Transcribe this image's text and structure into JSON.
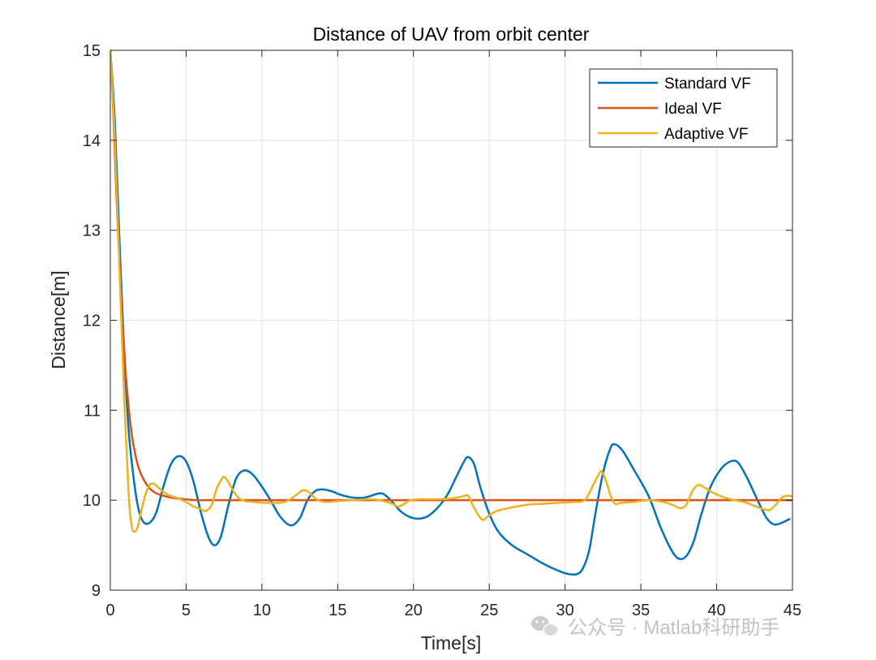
{
  "chart_data": {
    "type": "line",
    "title": "Distance of UAV from orbit center",
    "xlabel": "Time[s]",
    "ylabel": "Distance[m]",
    "xlim": [
      0,
      45
    ],
    "ylim": [
      9,
      15
    ],
    "xticks": [
      0,
      5,
      10,
      15,
      20,
      25,
      30,
      35,
      40,
      45
    ],
    "yticks": [
      9,
      10,
      11,
      12,
      13,
      14,
      15
    ],
    "grid": true,
    "legend_position": "top-right",
    "series": [
      {
        "name": "Standard VF",
        "color": "#0072BD",
        "points": [
          [
            0,
            15
          ],
          [
            0.3,
            14.2
          ],
          [
            0.6,
            12.9
          ],
          [
            0.9,
            11.7
          ],
          [
            1.2,
            10.8
          ],
          [
            1.5,
            10.3
          ],
          [
            1.8,
            9.95
          ],
          [
            2.1,
            9.78
          ],
          [
            2.5,
            9.74
          ],
          [
            3.0,
            9.85
          ],
          [
            3.5,
            10.15
          ],
          [
            4.0,
            10.4
          ],
          [
            4.5,
            10.49
          ],
          [
            5.0,
            10.43
          ],
          [
            5.5,
            10.2
          ],
          [
            6.0,
            9.85
          ],
          [
            6.5,
            9.58
          ],
          [
            6.9,
            9.5
          ],
          [
            7.3,
            9.6
          ],
          [
            7.8,
            9.95
          ],
          [
            8.3,
            10.24
          ],
          [
            8.8,
            10.33
          ],
          [
            9.3,
            10.3
          ],
          [
            9.8,
            10.2
          ],
          [
            10.5,
            10.02
          ],
          [
            11.2,
            9.82
          ],
          [
            11.9,
            9.72
          ],
          [
            12.5,
            9.8
          ],
          [
            13.0,
            10.0
          ],
          [
            13.5,
            10.1
          ],
          [
            14.0,
            10.12
          ],
          [
            14.6,
            10.1
          ],
          [
            15.2,
            10.06
          ],
          [
            16,
            10.03
          ],
          [
            16.8,
            10.03
          ],
          [
            17.6,
            10.07
          ],
          [
            18.0,
            10.07
          ],
          [
            18.5,
            10.0
          ],
          [
            19.2,
            9.87
          ],
          [
            20.0,
            9.8
          ],
          [
            20.8,
            9.81
          ],
          [
            21.5,
            9.9
          ],
          [
            22.2,
            10.05
          ],
          [
            22.8,
            10.25
          ],
          [
            23.3,
            10.42
          ],
          [
            23.6,
            10.48
          ],
          [
            24.0,
            10.4
          ],
          [
            24.4,
            10.15
          ],
          [
            25.0,
            9.85
          ],
          [
            25.6,
            9.65
          ],
          [
            26.5,
            9.5
          ],
          [
            27.5,
            9.4
          ],
          [
            28.5,
            9.3
          ],
          [
            29.5,
            9.22
          ],
          [
            30.2,
            9.18
          ],
          [
            30.8,
            9.18
          ],
          [
            31.2,
            9.25
          ],
          [
            31.6,
            9.45
          ],
          [
            32.0,
            9.85
          ],
          [
            32.5,
            10.3
          ],
          [
            33.0,
            10.58
          ],
          [
            33.3,
            10.62
          ],
          [
            33.8,
            10.55
          ],
          [
            34.5,
            10.35
          ],
          [
            35.5,
            10.05
          ],
          [
            36.3,
            9.7
          ],
          [
            37.0,
            9.45
          ],
          [
            37.5,
            9.35
          ],
          [
            38.0,
            9.38
          ],
          [
            38.5,
            9.55
          ],
          [
            39.0,
            9.85
          ],
          [
            39.6,
            10.15
          ],
          [
            40.3,
            10.35
          ],
          [
            40.9,
            10.43
          ],
          [
            41.4,
            10.42
          ],
          [
            42.0,
            10.25
          ],
          [
            42.7,
            10.0
          ],
          [
            43.3,
            9.8
          ],
          [
            43.8,
            9.73
          ],
          [
            44.3,
            9.75
          ],
          [
            44.8,
            9.79
          ]
        ]
      },
      {
        "name": "Ideal VF",
        "color": "#D95319",
        "points": [
          [
            0,
            15
          ],
          [
            0.2,
            14.3
          ],
          [
            0.4,
            13.4
          ],
          [
            0.6,
            12.65
          ],
          [
            0.8,
            12.0
          ],
          [
            1.0,
            11.45
          ],
          [
            1.2,
            11.05
          ],
          [
            1.4,
            10.75
          ],
          [
            1.6,
            10.55
          ],
          [
            1.8,
            10.4
          ],
          [
            2.0,
            10.3
          ],
          [
            2.3,
            10.2
          ],
          [
            2.6,
            10.13
          ],
          [
            3.0,
            10.08
          ],
          [
            3.5,
            10.05
          ],
          [
            4.0,
            10.03
          ],
          [
            5.0,
            10.01
          ],
          [
            6.0,
            10.0
          ],
          [
            10,
            10.0
          ],
          [
            20,
            10.0
          ],
          [
            30,
            10.0
          ],
          [
            40,
            10.0
          ],
          [
            45,
            10.0
          ]
        ]
      },
      {
        "name": "Adaptive VF",
        "color": "#EDB120",
        "points": [
          [
            0,
            15
          ],
          [
            0.3,
            14.0
          ],
          [
            0.6,
            12.6
          ],
          [
            0.9,
            11.2
          ],
          [
            1.2,
            10.1
          ],
          [
            1.4,
            9.72
          ],
          [
            1.6,
            9.65
          ],
          [
            1.8,
            9.7
          ],
          [
            2.0,
            9.85
          ],
          [
            2.3,
            10.05
          ],
          [
            2.6,
            10.17
          ],
          [
            2.9,
            10.18
          ],
          [
            3.3,
            10.12
          ],
          [
            3.8,
            10.06
          ],
          [
            4.5,
            10.02
          ],
          [
            5.0,
            9.98
          ],
          [
            5.5,
            9.93
          ],
          [
            6.0,
            9.9
          ],
          [
            6.3,
            9.88
          ],
          [
            6.7,
            9.95
          ],
          [
            7.0,
            10.12
          ],
          [
            7.3,
            10.22
          ],
          [
            7.5,
            10.26
          ],
          [
            7.8,
            10.2
          ],
          [
            8.2,
            10.08
          ],
          [
            8.7,
            10.0
          ],
          [
            9.5,
            9.98
          ],
          [
            10.5,
            9.97
          ],
          [
            11.5,
            9.98
          ],
          [
            12.2,
            10.05
          ],
          [
            12.7,
            10.11
          ],
          [
            13.1,
            10.09
          ],
          [
            13.6,
            10.01
          ],
          [
            14.2,
            9.98
          ],
          [
            15,
            9.99
          ],
          [
            16,
            10.0
          ],
          [
            17,
            10.01
          ],
          [
            17.8,
            10.0
          ],
          [
            18.6,
            9.96
          ],
          [
            19.0,
            9.93
          ],
          [
            19.4,
            9.96
          ],
          [
            19.8,
            10.0
          ],
          [
            20.5,
            10.01
          ],
          [
            21.5,
            10.01
          ],
          [
            22.5,
            10.02
          ],
          [
            23.2,
            10.04
          ],
          [
            23.6,
            10.05
          ],
          [
            23.9,
            9.95
          ],
          [
            24.3,
            9.83
          ],
          [
            24.6,
            9.78
          ],
          [
            24.9,
            9.82
          ],
          [
            25.5,
            9.88
          ],
          [
            26.5,
            9.92
          ],
          [
            27.5,
            9.95
          ],
          [
            28.5,
            9.96
          ],
          [
            29.5,
            9.97
          ],
          [
            30.5,
            9.98
          ],
          [
            31.3,
            10.0
          ],
          [
            31.8,
            10.15
          ],
          [
            32.2,
            10.28
          ],
          [
            32.4,
            10.32
          ],
          [
            32.7,
            10.22
          ],
          [
            33.0,
            10.05
          ],
          [
            33.3,
            9.96
          ],
          [
            33.7,
            9.97
          ],
          [
            34.5,
            9.98
          ],
          [
            35.5,
            10.0
          ],
          [
            36.5,
            9.98
          ],
          [
            37.2,
            9.94
          ],
          [
            37.6,
            9.91
          ],
          [
            38.0,
            9.95
          ],
          [
            38.4,
            10.1
          ],
          [
            38.8,
            10.17
          ],
          [
            39.2,
            10.14
          ],
          [
            39.8,
            10.08
          ],
          [
            40.5,
            10.03
          ],
          [
            41.2,
            10.0
          ],
          [
            42.0,
            9.97
          ],
          [
            42.6,
            9.93
          ],
          [
            43.1,
            9.9
          ],
          [
            43.5,
            9.89
          ],
          [
            43.9,
            9.95
          ],
          [
            44.3,
            10.03
          ],
          [
            44.7,
            10.05
          ],
          [
            45,
            10.04
          ]
        ]
      }
    ]
  },
  "watermark": {
    "text": "公众号 · Matlab科研助手",
    "icon": "wechat-icon"
  }
}
